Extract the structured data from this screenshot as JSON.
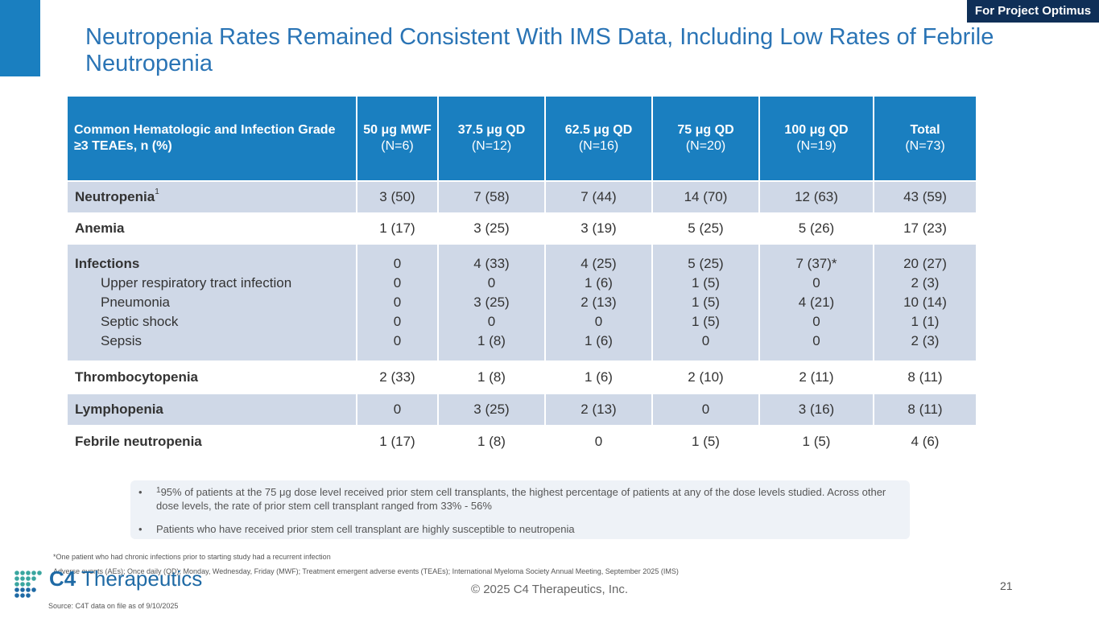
{
  "badge": "For Project Optimus",
  "title": "Neutropenia Rates Remained Consistent With IMS Data, Including Low Rates of Febrile Neutropenia",
  "table": {
    "header": {
      "label": "Common Hematologic and Infection Grade ≥3 TEAEs, n (%)",
      "columns": [
        {
          "dose": "50 μg MWF",
          "n": "(N=6)"
        },
        {
          "dose": "37.5 μg QD",
          "n": "(N=12)"
        },
        {
          "dose": "62.5 μg QD",
          "n": "(N=16)"
        },
        {
          "dose": "75 μg QD",
          "n": "(N=20)"
        },
        {
          "dose": "100 μg QD",
          "n": "(N=19)"
        },
        {
          "dose": "Total",
          "n": "(N=73)"
        }
      ]
    },
    "neutropenia": {
      "label": "Neutropenia",
      "sup": "1",
      "values": [
        "3 (50)",
        "7 (58)",
        "7 (44)",
        "14 (70)",
        "12 (63)",
        "43 (59)"
      ]
    },
    "anemia": {
      "label": "Anemia",
      "values": [
        "1 (17)",
        "3 (25)",
        "3 (19)",
        "5 (25)",
        "5 (26)",
        "17 (23)"
      ]
    },
    "infections": {
      "label": "Infections",
      "values": [
        "0",
        "4 (33)",
        "4 (25)",
        "5 (25)",
        "7 (37)*",
        "20 (27)"
      ],
      "subrows": [
        {
          "label": "Upper respiratory tract infection",
          "values": [
            "0",
            "0",
            "1 (6)",
            "1 (5)",
            "0",
            "2 (3)"
          ]
        },
        {
          "label": "Pneumonia",
          "values": [
            "0",
            "3 (25)",
            "2 (13)",
            "1 (5)",
            "4 (21)",
            "10 (14)"
          ]
        },
        {
          "label": "Septic shock",
          "values": [
            "0",
            "0",
            "0",
            "1 (5)",
            "0",
            "1 (1)"
          ]
        },
        {
          "label": "Sepsis",
          "values": [
            "0",
            "1 (8)",
            "1 (6)",
            "0",
            "0",
            "2 (3)"
          ]
        }
      ]
    },
    "thrombocytopenia": {
      "label": "Thrombocytopenia",
      "values": [
        "2 (33)",
        "1 (8)",
        "1 (6)",
        "2 (10)",
        "2 (11)",
        "8 (11)"
      ]
    },
    "lymphopenia": {
      "label": "Lymphopenia",
      "values": [
        "0",
        "3 (25)",
        "2 (13)",
        "0",
        "3 (16)",
        "8 (11)"
      ]
    },
    "febrile": {
      "label": "Febrile neutropenia",
      "values": [
        "1 (17)",
        "1 (8)",
        "0",
        "1 (5)",
        "1 (5)",
        "4 (6)"
      ]
    }
  },
  "notes": [
    {
      "bullet": "•",
      "sup": "1",
      "text": "95% of patients at the 75 μg dose level received prior stem cell transplants, the highest percentage of patients at any of the dose levels studied. Across other dose levels, the rate of prior stem cell transplant ranged from 33% - 56%"
    },
    {
      "bullet": "•",
      "text": "Patients who have received prior stem cell transplant are highly susceptible to neutropenia"
    }
  ],
  "footnotes": {
    "asterisk": "*One patient who had chronic infections prior to starting study had a recurrent infection",
    "abbreviations": "Adverse events (AEs); Once daily (QD); Monday, Wednesday, Friday (MWF); Treatment emergent adverse events (TEAEs); International Myeloma Society Annual Meeting, September 2025 (IMS)",
    "source": "Source: C4T data on file as of 9/10/2025"
  },
  "logo": {
    "strong": "C4",
    "rest": " Therapeutics"
  },
  "copyright": "© 2025 C4 Therapeutics, Inc.",
  "page_number": "21",
  "colors": {
    "header_blue": "#1a7fc0",
    "title_blue": "#2a74b5",
    "navy_badge": "#0f2f57",
    "row_shade": "#cfd8e7"
  }
}
